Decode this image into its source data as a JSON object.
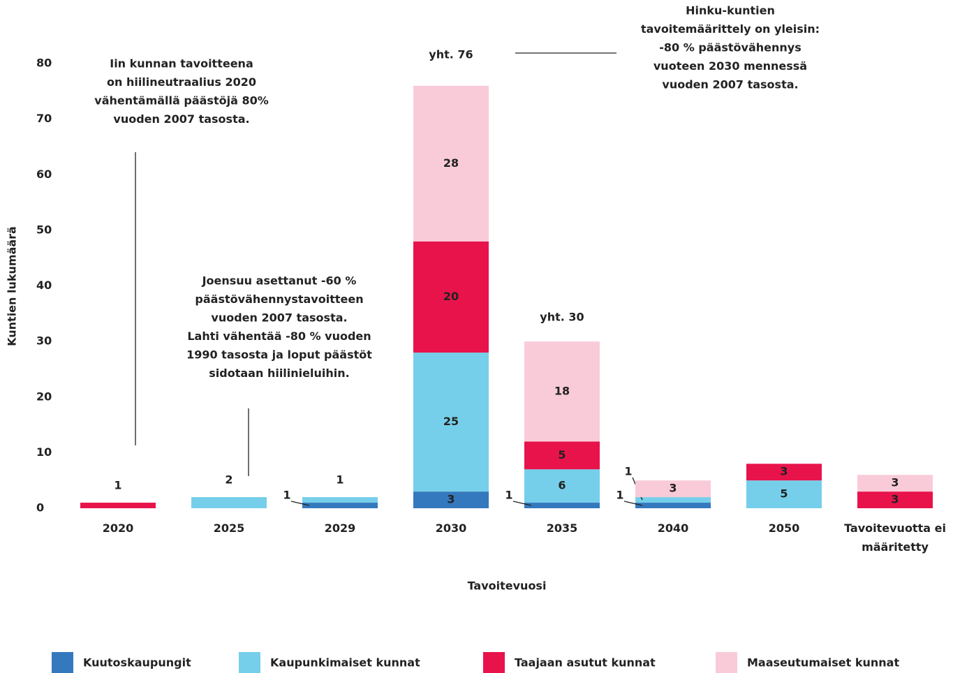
{
  "chart_data": {
    "type": "stacked_bar",
    "categories": [
      "2020",
      "2025",
      "2029",
      "2030",
      "2035",
      "2040",
      "2050",
      "Tavoitevuotta ei määritetty"
    ],
    "series": [
      {
        "name": "Kuutoskaupungit",
        "color": "#3478bd",
        "values": [
          null,
          null,
          1,
          3,
          1,
          1,
          null,
          null
        ]
      },
      {
        "name": "Kaupunkimaiset kunnat",
        "color": "#76cfea",
        "values": [
          null,
          2,
          1,
          25,
          6,
          1,
          5,
          null
        ]
      },
      {
        "name": "Taajaan asutut kunnat",
        "color": "#e8134b",
        "values": [
          1,
          null,
          null,
          20,
          5,
          null,
          3,
          3
        ]
      },
      {
        "name": "Maaseutumaiset kunnat",
        "color": "#f9cbd8",
        "values": [
          null,
          null,
          null,
          28,
          18,
          3,
          null,
          3
        ]
      }
    ],
    "ylim": [
      0,
      80
    ],
    "yticks": [
      0,
      10,
      20,
      30,
      40,
      50,
      60,
      70,
      80
    ],
    "y_label": "Kuntien lukumäärä",
    "x_label": "Tavoitevuosi",
    "totals": [
      "yht. 76",
      "yht. 30"
    ],
    "annotations": [
      [
        "Iin kunnan tavoitteena",
        "on hiilineutraalius 2020",
        "vähentämällä päästöjä 80%",
        "vuoden 2007 tasosta."
      ],
      [
        "Joensuu asettanut -60 %",
        "päästövähennystavoitteen",
        "vuoden 2007 tasosta.",
        "Lahti vähentää -80 % vuoden",
        "1990 tasosta ja loput päästöt",
        "sidotaan hiilinieluihin."
      ],
      [
        "Hinku-kuntien",
        "tavoitemäärittely on yleisin:",
        "-80 % päästövähennys",
        "vuoteen 2030 mennessä",
        "vuoden 2007 tasosta."
      ]
    ],
    "legend": "bottom"
  }
}
